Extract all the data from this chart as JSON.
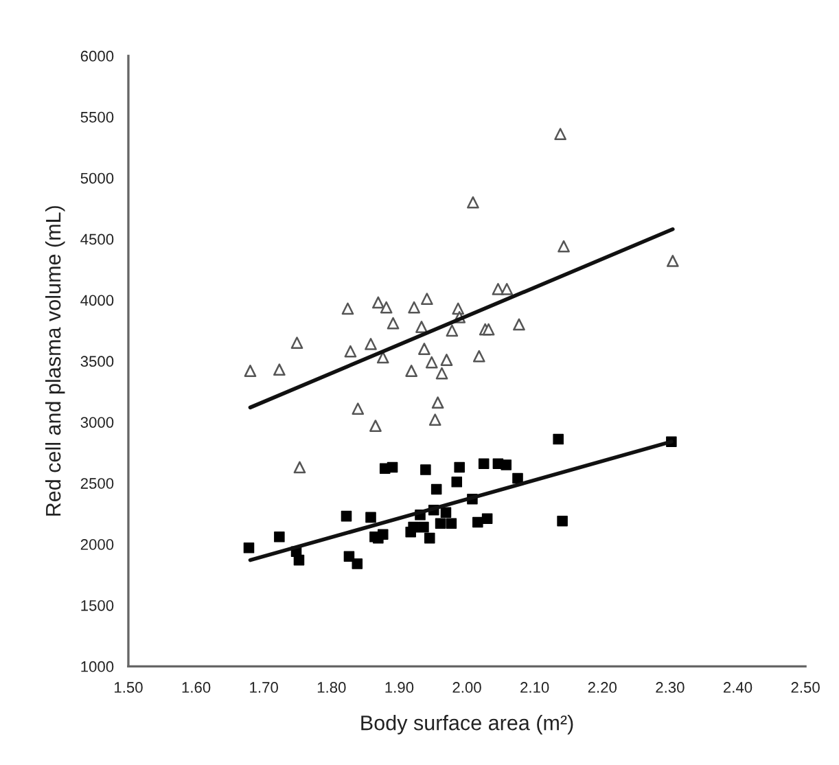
{
  "chart_data": {
    "type": "scatter",
    "xlabel": "Body surface area (m²)",
    "ylabel": "Red cell and plasma volume (mL)",
    "xlim": [
      1.5,
      2.5
    ],
    "xticks": [
      {
        "value": 1.5,
        "label": "1.50"
      },
      {
        "value": 1.6,
        "label": "1.60"
      },
      {
        "value": 1.7,
        "label": "1.70"
      },
      {
        "value": 1.8,
        "label": "1.80"
      },
      {
        "value": 1.9,
        "label": "1.90"
      },
      {
        "value": 2.0,
        "label": "2.00"
      },
      {
        "value": 2.1,
        "label": "2.10"
      },
      {
        "value": 2.2,
        "label": "2.20"
      },
      {
        "value": 2.3,
        "label": "2.30"
      },
      {
        "value": 2.4,
        "label": "2.40"
      },
      {
        "value": 2.5,
        "label": "2.50"
      }
    ],
    "ylim": [
      1000,
      6000
    ],
    "yticks": [
      1000,
      1500,
      2000,
      2500,
      3000,
      3500,
      4000,
      4500,
      5000,
      5500,
      6000
    ],
    "grid": false,
    "legend": false,
    "series": [
      {
        "marker": "triangle",
        "color": "#555555",
        "x": [
          1.68,
          1.723,
          1.749,
          1.824,
          1.828,
          1.839,
          1.858,
          1.865,
          1.869,
          1.876,
          1.881,
          1.891,
          1.918,
          1.922,
          1.933,
          1.937,
          1.941,
          1.948,
          1.953,
          1.957,
          1.963,
          1.97,
          1.978,
          1.987,
          1.989,
          2.009,
          2.018,
          2.027,
          2.032,
          2.046,
          2.059,
          2.077,
          2.138,
          2.143,
          2.304,
          1.753
        ],
        "values": [
          3420,
          3430,
          3650,
          3930,
          3580,
          3110,
          3640,
          2970,
          3980,
          3530,
          3940,
          3810,
          3420,
          3940,
          3780,
          3600,
          4010,
          3490,
          3020,
          3160,
          3400,
          3510,
          3750,
          3930,
          3860,
          4800,
          3540,
          3760,
          3760,
          4090,
          4090,
          3800,
          5360,
          4440,
          4320,
          2630
        ]
      },
      {
        "marker": "square",
        "color": "#000000",
        "x": [
          1.678,
          1.723,
          1.748,
          1.752,
          1.822,
          1.826,
          1.838,
          1.858,
          1.864,
          1.869,
          1.876,
          1.879,
          1.89,
          1.917,
          1.921,
          1.931,
          1.936,
          1.939,
          1.945,
          1.951,
          1.955,
          1.961,
          1.969,
          1.977,
          1.985,
          1.989,
          2.008,
          2.016,
          2.03,
          2.025,
          2.046,
          2.058,
          2.075,
          2.135,
          2.141,
          2.302
        ],
        "values": [
          1970,
          2060,
          1940,
          1870,
          2230,
          1900,
          1840,
          2220,
          2060,
          2050,
          2080,
          2620,
          2630,
          2100,
          2140,
          2240,
          2140,
          2610,
          2050,
          2280,
          2450,
          2170,
          2260,
          2170,
          2510,
          2630,
          2370,
          2180,
          2210,
          2660,
          2660,
          2650,
          2540,
          2860,
          2190,
          2840
        ]
      },
      {
        "type": "line",
        "marker": "none",
        "color": "#111111",
        "x": [
          1.68,
          2.304
        ],
        "values": [
          3120,
          4580
        ]
      },
      {
        "type": "line",
        "marker": "none",
        "color": "#111111",
        "x": [
          1.68,
          2.302
        ],
        "values": [
          1870,
          2840
        ]
      }
    ]
  }
}
